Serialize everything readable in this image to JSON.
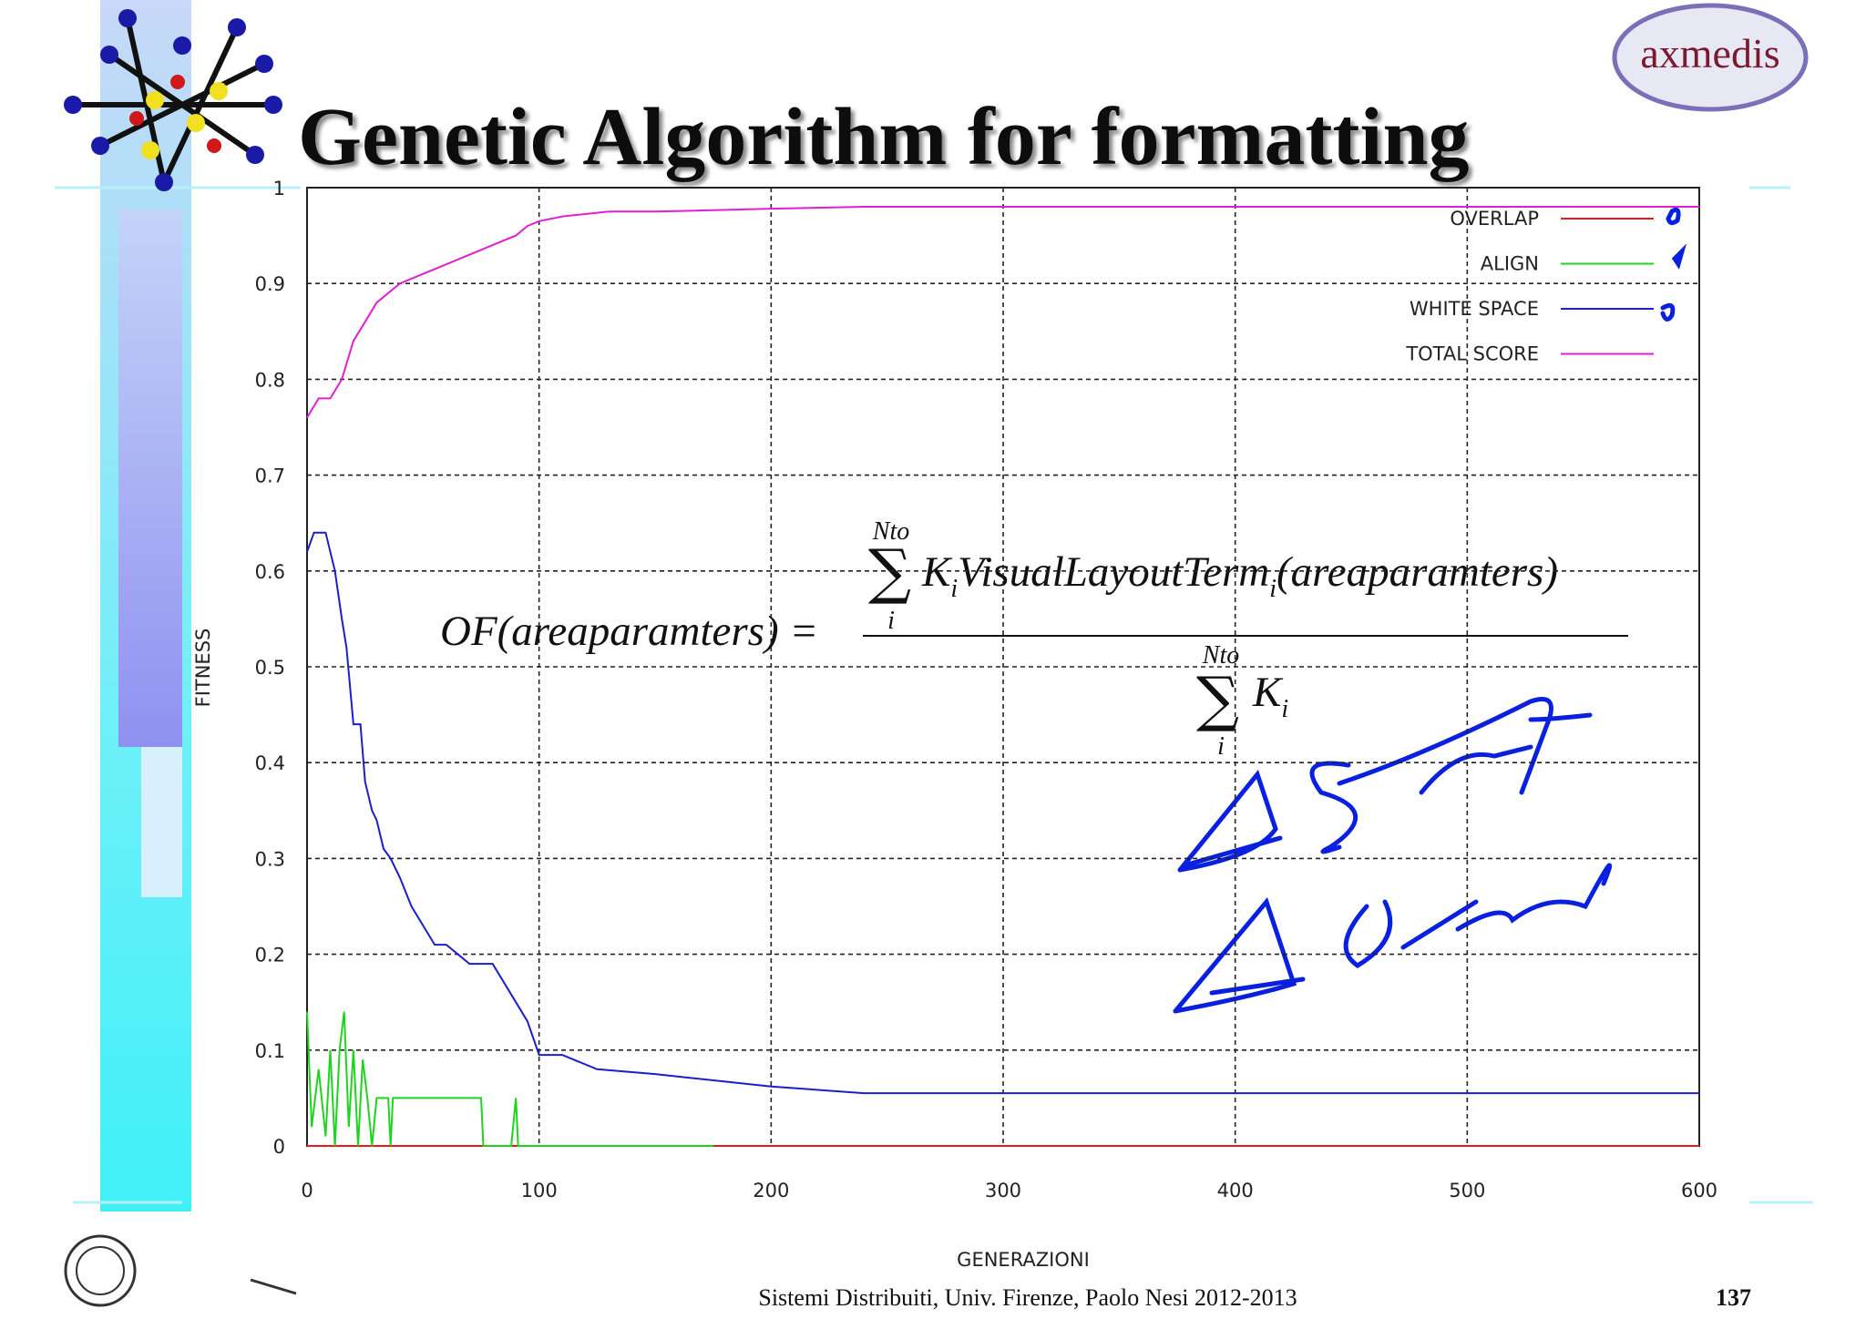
{
  "header": {
    "title": "Genetic Algorithm for formatting",
    "logo": "axmedis"
  },
  "chart_data": {
    "type": "line",
    "xlabel": "GENERAZIONI",
    "ylabel": "FITNESS",
    "xlim": [
      0,
      600
    ],
    "ylim": [
      0,
      1
    ],
    "xticks": [
      0,
      100,
      200,
      300,
      400,
      500,
      600
    ],
    "yticks": [
      0,
      0.1,
      0.2,
      0.3,
      0.4,
      0.5,
      0.6,
      0.7,
      0.8,
      0.9,
      1
    ],
    "grid": true,
    "legend": "upper right",
    "series": [
      {
        "name": "OVERLAP",
        "color": "#e8191f",
        "x": [
          0,
          600
        ],
        "values": [
          0,
          0
        ]
      },
      {
        "name": "ALIGN",
        "color": "#1fd41f",
        "x": [
          0,
          2,
          5,
          8,
          10,
          12,
          14,
          16,
          18,
          20,
          22,
          24,
          26,
          28,
          30,
          35,
          36,
          37,
          75,
          76,
          88,
          90,
          91,
          175
        ],
        "values": [
          0.14,
          0.02,
          0.08,
          0.01,
          0.1,
          0,
          0.1,
          0.14,
          0.02,
          0.1,
          0,
          0.09,
          0.05,
          0,
          0.05,
          0.05,
          0,
          0.05,
          0.05,
          0,
          0,
          0.05,
          0,
          0
        ]
      },
      {
        "name": "WHITE SPACE",
        "color": "#1a1fc8",
        "x": [
          0,
          3,
          8,
          12,
          15,
          17,
          20,
          23,
          25,
          28,
          30,
          33,
          36,
          40,
          45,
          50,
          55,
          60,
          70,
          80,
          90,
          95,
          100,
          110,
          125,
          150,
          200,
          240,
          600
        ],
        "values": [
          0.62,
          0.64,
          0.64,
          0.6,
          0.55,
          0.52,
          0.44,
          0.44,
          0.38,
          0.35,
          0.34,
          0.31,
          0.3,
          0.28,
          0.25,
          0.23,
          0.21,
          0.21,
          0.19,
          0.19,
          0.15,
          0.13,
          0.095,
          0.095,
          0.08,
          0.075,
          0.062,
          0.055,
          0.055
        ]
      },
      {
        "name": "TOTAL SCORE",
        "color": "#e020d0",
        "x": [
          0,
          5,
          10,
          15,
          20,
          25,
          30,
          40,
          50,
          60,
          70,
          80,
          90,
          95,
          100,
          110,
          130,
          150,
          200,
          240,
          300,
          400,
          500,
          600
        ],
        "values": [
          0.76,
          0.78,
          0.78,
          0.8,
          0.84,
          0.86,
          0.88,
          0.9,
          0.91,
          0.92,
          0.93,
          0.94,
          0.95,
          0.96,
          0.965,
          0.97,
          0.975,
          0.975,
          0.978,
          0.98,
          0.98,
          0.98,
          0.98,
          0.98
        ]
      }
    ]
  },
  "formula": {
    "lhs": "OF(areaparamters) =",
    "num_sum_top": "Nto",
    "num_sum_bottom": "i",
    "num_k": "K",
    "num_k_sub": "i",
    "num_term": "VisualLayoutTerm",
    "num_term_sub": "i",
    "num_arg": "(areaparamters)",
    "den_sum_top": "Nto",
    "den_sum_bottom": "i",
    "den_k": "K",
    "den_k_sub": "i"
  },
  "footer": {
    "text": "Sistemi Distribuiti, Univ. Firenze, Paolo Nesi 2012-2013",
    "page": "137"
  }
}
